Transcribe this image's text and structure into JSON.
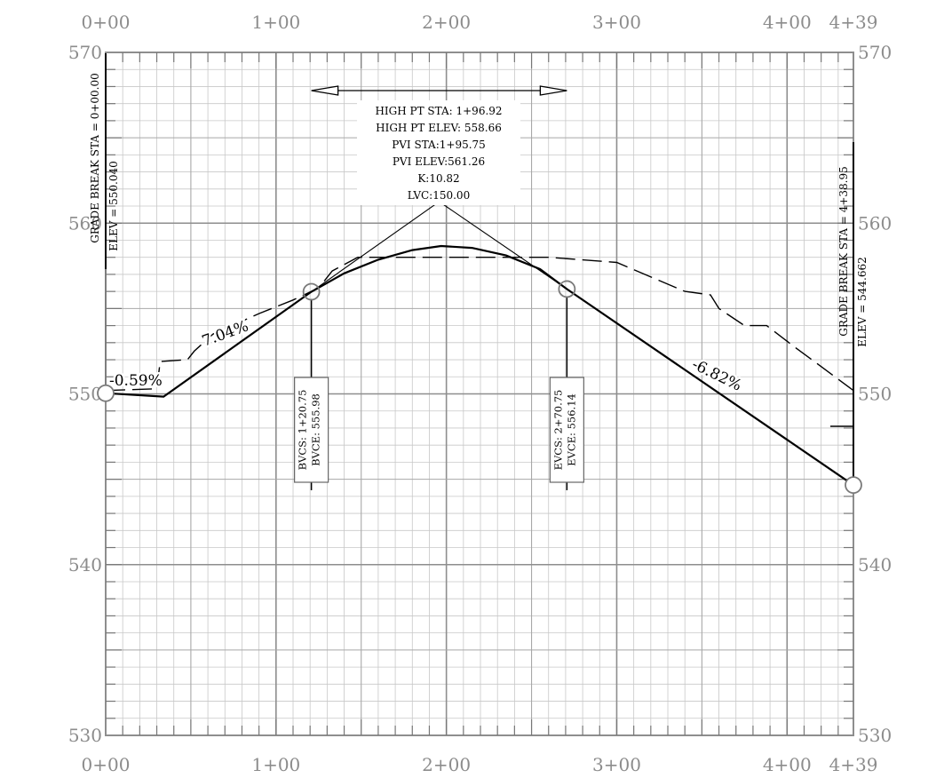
{
  "chart_data": {
    "type": "line",
    "x_ticks": [
      "0+00",
      "1+00",
      "2+00",
      "3+00",
      "4+00",
      "4+39"
    ],
    "y_ticks": [
      "530",
      "540",
      "550",
      "560",
      "570"
    ],
    "xlim": [
      0,
      438.95
    ],
    "ylim": [
      530,
      570
    ],
    "series": [
      {
        "style": "solid",
        "points": [
          [
            0,
            550.04
          ],
          [
            34,
            549.84
          ],
          [
            120.75,
            555.98
          ],
          [
            140,
            557.06
          ],
          [
            160,
            557.86
          ],
          [
            180,
            558.42
          ],
          [
            196.92,
            558.66
          ],
          [
            215,
            558.55
          ],
          [
            235,
            558.11
          ],
          [
            255,
            557.31
          ],
          [
            270.75,
            556.14
          ],
          [
            438.95,
            544.66
          ]
        ]
      },
      {
        "style": "dashed",
        "points": [
          [
            0,
            550.2
          ],
          [
            30,
            550.3
          ],
          [
            32,
            551.9
          ],
          [
            48,
            552.0
          ],
          [
            52,
            552.5
          ],
          [
            63,
            553.5
          ],
          [
            90,
            554.7
          ],
          [
            110,
            555.5
          ],
          [
            125,
            556.2
          ],
          [
            133,
            557.2
          ],
          [
            148,
            558.0
          ],
          [
            260,
            558.0
          ],
          [
            300,
            557.7
          ],
          [
            340,
            556.0
          ],
          [
            355,
            555.8
          ],
          [
            360,
            555.0
          ],
          [
            375,
            554.0
          ],
          [
            388,
            554.0
          ],
          [
            405,
            552.7
          ],
          [
            420,
            551.6
          ],
          [
            438.95,
            550.2
          ]
        ]
      }
    ],
    "grades": [
      "-0.59%",
      "7.04%",
      "-6.82%"
    ],
    "high_point": {
      "line1": "HIGH PT STA: 1+96.92",
      "line2": "HIGH PT ELEV: 558.66",
      "line3": "PVI STA:1+95.75",
      "line4": "PVI ELEV:561.26",
      "line5": "K:10.82",
      "line6": "LVC:150.00"
    },
    "bvc": {
      "station": 120.75,
      "elev": 555.98,
      "sta_label": "BVCS: 1+20.75",
      "elev_label": "BVCE: 555.98"
    },
    "evc": {
      "station": 270.75,
      "elev": 556.14,
      "sta_label": "EVCS: 2+70.75",
      "elev_label": "EVCE: 556.14"
    },
    "grade_break_start": {
      "station": 0,
      "elev": 550.04,
      "sta_label": "GRADE BREAK STA = 0+00.00",
      "elev_label": "ELEV =  550.040"
    },
    "grade_break_end": {
      "station": 438.95,
      "elev": 544.662,
      "sta_label": "GRADE BREAK STA = 4+38.95",
      "elev_label": "ELEV =  544.662"
    },
    "pvi": {
      "station": 195.75,
      "elev": 561.26
    },
    "arrow_span": [
      120.75,
      270.75
    ],
    "grid": true
  }
}
